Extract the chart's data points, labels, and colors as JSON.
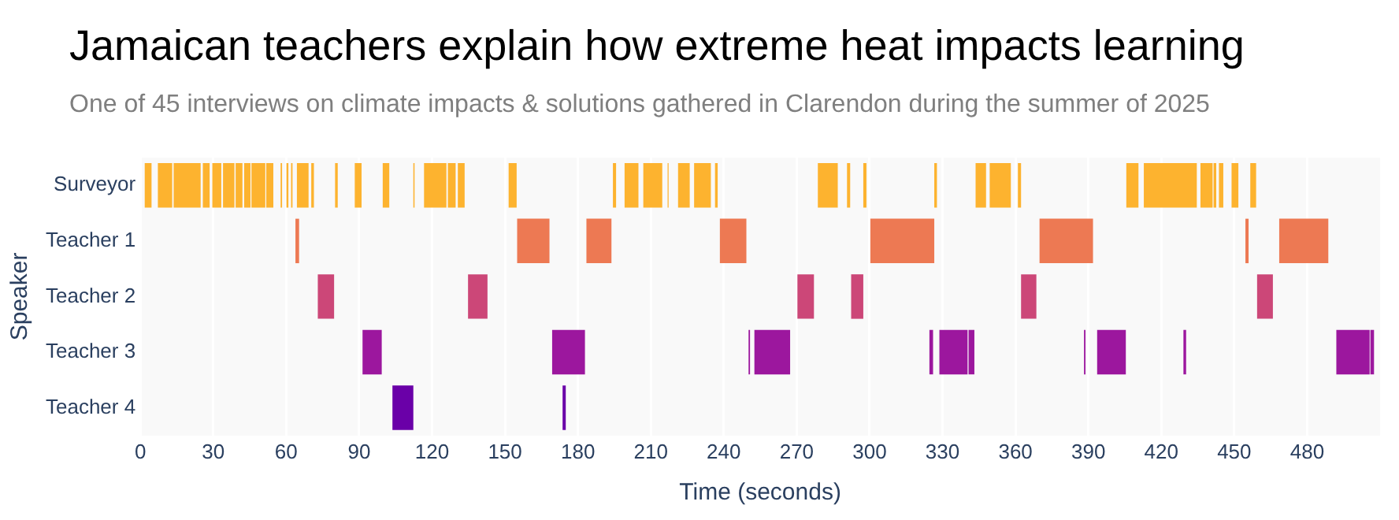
{
  "chart_data": {
    "type": "bar",
    "orientation": "horizontal",
    "title": "Jamaican teachers explain how extreme heat impacts learning",
    "subtitle": "One of 45 interviews on climate impacts & solutions gathered in Clarendon during the summer of 2025",
    "xlabel": "Time (seconds)",
    "ylabel": "Speaker",
    "categories": [
      "Surveyor",
      "Teacher 1",
      "Teacher 2",
      "Teacher 3",
      "Teacher 4"
    ],
    "xlim": [
      0,
      510
    ],
    "xticks": [
      0,
      30,
      60,
      90,
      120,
      150,
      180,
      210,
      240,
      270,
      300,
      330,
      360,
      390,
      420,
      450,
      480
    ],
    "grid": "x",
    "legend": false,
    "series": [
      {
        "color": "#fdb32f",
        "base": [
          1.8,
          null,
          null,
          null,
          null
        ],
        "values": [
          2.8,
          null,
          null,
          null,
          null
        ]
      },
      {
        "color": "#fdb32f",
        "base": [
          7.2,
          null,
          null,
          null,
          null
        ],
        "values": [
          5.9,
          null,
          null,
          null,
          null
        ]
      },
      {
        "color": "#fdb32f",
        "base": [
          13.7,
          null,
          null,
          null,
          null
        ],
        "values": [
          11.1,
          null,
          null,
          null,
          null
        ]
      },
      {
        "color": "#fdb32f",
        "base": [
          25.7,
          null,
          null,
          null,
          null
        ],
        "values": [
          2.8,
          null,
          null,
          null,
          null
        ]
      },
      {
        "color": "#fdb32f",
        "base": [
          29.6,
          null,
          null,
          null,
          null
        ],
        "values": [
          3.7,
          null,
          null,
          null,
          null
        ]
      },
      {
        "color": "#fdb32f",
        "base": [
          34,
          null,
          null,
          null,
          null
        ],
        "values": [
          4.7,
          null,
          null,
          null,
          null
        ]
      },
      {
        "color": "#fdb32f",
        "base": [
          39.2,
          null,
          null,
          null,
          null
        ],
        "values": [
          2.8,
          null,
          null,
          null,
          null
        ]
      },
      {
        "color": "#fdb32f",
        "base": [
          42.7,
          null,
          null,
          null,
          null
        ],
        "values": [
          2.6,
          null,
          null,
          null,
          null
        ]
      },
      {
        "color": "#fdb32f",
        "base": [
          45.7,
          null,
          null,
          null,
          null
        ],
        "values": [
          5.7,
          null,
          null,
          null,
          null
        ]
      },
      {
        "color": "#fdb32f",
        "base": [
          51.8,
          null,
          null,
          null,
          null
        ],
        "values": [
          2.9,
          null,
          null,
          null,
          null
        ]
      },
      {
        "color": "#fdb32f",
        "base": [
          57.7,
          null,
          null,
          null,
          null
        ],
        "values": [
          0.6,
          null,
          null,
          null,
          null
        ]
      },
      {
        "color": "#fdb32f",
        "base": [
          60.1,
          null,
          null,
          null,
          null
        ],
        "values": [
          0.8,
          null,
          null,
          null,
          null
        ]
      },
      {
        "color": "#fdb32f",
        "base": [
          62,
          null,
          null,
          null,
          null
        ],
        "values": [
          0.6,
          null,
          null,
          null,
          null
        ]
      },
      {
        "color": "#fdb32f",
        "base": [
          64.4,
          null,
          null,
          null,
          null
        ],
        "values": [
          4.8,
          null,
          null,
          null,
          null
        ]
      },
      {
        "color": "#fdb32f",
        "base": [
          70.3,
          null,
          null,
          null,
          null
        ],
        "values": [
          1.1,
          null,
          null,
          null,
          null
        ]
      },
      {
        "color": "#fdb32f",
        "base": [
          80.1,
          null,
          null,
          null,
          null
        ],
        "values": [
          1.1,
          null,
          null,
          null,
          null
        ]
      },
      {
        "color": "#fdb32f",
        "base": [
          88.2,
          null,
          null,
          null,
          null
        ],
        "values": [
          2.8,
          null,
          null,
          null,
          null
        ]
      },
      {
        "color": "#fdb32f",
        "base": [
          99.7,
          null,
          null,
          null,
          null
        ],
        "values": [
          2.7,
          null,
          null,
          null,
          null
        ]
      },
      {
        "color": "#fdb32f",
        "base": [
          112.3,
          null,
          null,
          null,
          null
        ],
        "values": [
          0.5,
          null,
          null,
          null,
          null
        ]
      },
      {
        "color": "#fdb32f",
        "base": [
          116.7,
          null,
          null,
          null,
          null
        ],
        "values": [
          9.2,
          null,
          null,
          null,
          null
        ]
      },
      {
        "color": "#fdb32f",
        "base": [
          126.5,
          null,
          null,
          null,
          null
        ],
        "values": [
          3.2,
          null,
          null,
          null,
          null
        ]
      },
      {
        "color": "#fdb32f",
        "base": [
          130.6,
          null,
          null,
          null,
          null
        ],
        "values": [
          2.8,
          null,
          null,
          null,
          null
        ]
      },
      {
        "color": "#fdb32f",
        "base": [
          151.5,
          null,
          null,
          null,
          null
        ],
        "values": [
          3.3,
          null,
          null,
          null,
          null
        ]
      },
      {
        "color": "#fdb32f",
        "base": [
          194.4,
          null,
          null,
          null,
          null
        ],
        "values": [
          1.3,
          null,
          null,
          null,
          null
        ]
      },
      {
        "color": "#fdb32f",
        "base": [
          199.2,
          null,
          null,
          null,
          null
        ],
        "values": [
          5.7,
          null,
          null,
          null,
          null
        ]
      },
      {
        "color": "#fdb32f",
        "base": [
          206.9,
          null,
          null,
          null,
          null
        ],
        "values": [
          7.8,
          null,
          null,
          null,
          null
        ]
      },
      {
        "color": "#fdb32f",
        "base": [
          216.9,
          null,
          null,
          null,
          null
        ],
        "values": [
          0.4,
          null,
          null,
          null,
          null
        ]
      },
      {
        "color": "#fdb32f",
        "base": [
          221.2,
          null,
          null,
          null,
          null
        ],
        "values": [
          4.8,
          null,
          null,
          null,
          null
        ]
      },
      {
        "color": "#fdb32f",
        "base": [
          227.8,
          null,
          null,
          null,
          null
        ],
        "values": [
          6.9,
          null,
          null,
          null,
          null
        ]
      },
      {
        "color": "#fdb32f",
        "base": [
          236.4,
          null,
          null,
          null,
          null
        ],
        "values": [
          1.1,
          null,
          null,
          null,
          null
        ]
      },
      {
        "color": "#fdb32f",
        "base": [
          278.7,
          null,
          null,
          null,
          null
        ],
        "values": [
          8.2,
          null,
          null,
          null,
          null
        ]
      },
      {
        "color": "#fdb32f",
        "base": [
          290.7,
          null,
          null,
          null,
          null
        ],
        "values": [
          1.3,
          null,
          null,
          null,
          null
        ]
      },
      {
        "color": "#fdb32f",
        "base": [
          297.4,
          null,
          null,
          null,
          null
        ],
        "values": [
          1.3,
          null,
          null,
          null,
          null
        ]
      },
      {
        "color": "#fdb32f",
        "base": [
          326.6,
          null,
          null,
          null,
          null
        ],
        "values": [
          1.1,
          null,
          null,
          null,
          null
        ]
      },
      {
        "color": "#fdb32f",
        "base": [
          343.6,
          null,
          null,
          null,
          null
        ],
        "values": [
          4.3,
          null,
          null,
          null,
          null
        ]
      },
      {
        "color": "#fdb32f",
        "base": [
          349.4,
          null,
          null,
          null,
          null
        ],
        "values": [
          8.7,
          null,
          null,
          null,
          null
        ]
      },
      {
        "color": "#fdb32f",
        "base": [
          361,
          null,
          null,
          null,
          null
        ],
        "values": [
          1.3,
          null,
          null,
          null,
          null
        ]
      },
      {
        "color": "#fdb32f",
        "base": [
          405.6,
          null,
          null,
          null,
          null
        ],
        "values": [
          5,
          null,
          null,
          null,
          null
        ]
      },
      {
        "color": "#fdb32f",
        "base": [
          412.8,
          null,
          null,
          null,
          null
        ],
        "values": [
          21.8,
          null,
          null,
          null,
          null
        ]
      },
      {
        "color": "#fdb32f",
        "base": [
          436.1,
          null,
          null,
          null,
          null
        ],
        "values": [
          5,
          null,
          null,
          null,
          null
        ]
      },
      {
        "color": "#fdb32f",
        "base": [
          441.5,
          null,
          null,
          null,
          null
        ],
        "values": [
          1.1,
          null,
          null,
          null,
          null
        ]
      },
      {
        "color": "#fdb32f",
        "base": [
          443.7,
          null,
          null,
          null,
          null
        ],
        "values": [
          1.8,
          null,
          null,
          null,
          null
        ]
      },
      {
        "color": "#fdb32f",
        "base": [
          448.9,
          null,
          null,
          null,
          null
        ],
        "values": [
          2.8,
          null,
          null,
          null,
          null
        ]
      },
      {
        "color": "#fdb32f",
        "base": [
          456.6,
          null,
          null,
          null,
          null
        ],
        "values": [
          2.4,
          null,
          null,
          null,
          null
        ]
      },
      {
        "color": "#ed7953",
        "base": [
          null,
          63.8,
          null,
          null,
          null
        ],
        "values": [
          null,
          1.5,
          null,
          null,
          null
        ]
      },
      {
        "color": "#ed7953",
        "base": [
          null,
          155,
          null,
          null,
          null
        ],
        "values": [
          null,
          13.3,
          null,
          null,
          null
        ]
      },
      {
        "color": "#ed7953",
        "base": [
          null,
          183.5,
          null,
          null,
          null
        ],
        "values": [
          null,
          10.3,
          null,
          null,
          null
        ]
      },
      {
        "color": "#ed7953",
        "base": [
          null,
          238.4,
          null,
          null,
          null
        ],
        "values": [
          null,
          10.9,
          null,
          null,
          null
        ]
      },
      {
        "color": "#ed7953",
        "base": [
          null,
          300.3,
          null,
          null,
          null
        ],
        "values": [
          null,
          26.3,
          null,
          null,
          null
        ]
      },
      {
        "color": "#ed7953",
        "base": [
          null,
          369.9,
          null,
          null,
          null
        ],
        "values": [
          null,
          22,
          null,
          null,
          null
        ]
      },
      {
        "color": "#ed7953",
        "base": [
          null,
          454.6,
          null,
          null,
          null
        ],
        "values": [
          null,
          1.3,
          null,
          null,
          null
        ]
      },
      {
        "color": "#ed7953",
        "base": [
          null,
          468.5,
          null,
          null,
          null
        ],
        "values": [
          null,
          20.2,
          null,
          null,
          null
        ]
      },
      {
        "color": "#cc4778",
        "base": [
          null,
          null,
          73,
          null,
          null
        ],
        "values": [
          null,
          null,
          6.7,
          null,
          null
        ]
      },
      {
        "color": "#cc4778",
        "base": [
          null,
          null,
          134.8,
          null,
          null
        ],
        "values": [
          null,
          null,
          8,
          null,
          null
        ]
      },
      {
        "color": "#cc4778",
        "base": [
          null,
          null,
          270.3,
          null,
          null
        ],
        "values": [
          null,
          null,
          6.8,
          null,
          null
        ]
      },
      {
        "color": "#cc4778",
        "base": [
          null,
          null,
          292.4,
          null,
          null
        ],
        "values": [
          null,
          null,
          5,
          null,
          null
        ]
      },
      {
        "color": "#cc4778",
        "base": [
          null,
          null,
          362.3,
          null,
          null
        ],
        "values": [
          null,
          null,
          6.3,
          null,
          null
        ]
      },
      {
        "color": "#cc4778",
        "base": [
          null,
          null,
          459.4,
          null,
          null
        ],
        "values": [
          null,
          null,
          6.5,
          null,
          null
        ]
      },
      {
        "color": "#9c179e",
        "base": [
          null,
          null,
          null,
          91.4,
          null
        ],
        "values": [
          null,
          null,
          null,
          7.9,
          null
        ]
      },
      {
        "color": "#9c179e",
        "base": [
          null,
          null,
          null,
          169.4,
          null
        ],
        "values": [
          null,
          null,
          null,
          13.5,
          null
        ]
      },
      {
        "color": "#9c179e",
        "base": [
          null,
          null,
          null,
          250.2,
          null
        ],
        "values": [
          null,
          null,
          null,
          0.6,
          null
        ]
      },
      {
        "color": "#9c179e",
        "base": [
          null,
          null,
          null,
          252.6,
          null
        ],
        "values": [
          null,
          null,
          null,
          14.7,
          null
        ]
      },
      {
        "color": "#9c179e",
        "base": [
          null,
          null,
          null,
          324.6,
          null
        ],
        "values": [
          null,
          null,
          null,
          1.5,
          null
        ]
      },
      {
        "color": "#9c179e",
        "base": [
          null,
          null,
          null,
          328.7,
          null
        ],
        "values": [
          null,
          null,
          null,
          11.6,
          null
        ]
      },
      {
        "color": "#9c179e",
        "base": [
          null,
          null,
          null,
          340.7,
          null
        ],
        "values": [
          null,
          null,
          null,
          2.4,
          null
        ]
      },
      {
        "color": "#9c179e",
        "base": [
          null,
          null,
          null,
          388.2,
          null
        ],
        "values": [
          null,
          null,
          null,
          0.6,
          null
        ]
      },
      {
        "color": "#9c179e",
        "base": [
          null,
          null,
          null,
          393.6,
          null
        ],
        "values": [
          null,
          null,
          null,
          11.8,
          null
        ]
      },
      {
        "color": "#9c179e",
        "base": [
          null,
          null,
          null,
          429.1,
          null
        ],
        "values": [
          null,
          null,
          null,
          1.1,
          null
        ]
      },
      {
        "color": "#9c179e",
        "base": [
          null,
          null,
          null,
          492,
          null
        ],
        "values": [
          null,
          null,
          null,
          13.7,
          null
        ]
      },
      {
        "color": "#9c179e",
        "base": [
          null,
          null,
          null,
          506,
          null
        ],
        "values": [
          null,
          null,
          null,
          1.5,
          null
        ]
      },
      {
        "color": "#6a00a8",
        "base": [
          null,
          null,
          null,
          null,
          103.7
        ],
        "values": [
          null,
          null,
          null,
          null,
          8.6
        ]
      },
      {
        "color": "#6a00a8",
        "base": [
          null,
          null,
          null,
          null,
          173.7
        ],
        "values": [
          null,
          null,
          null,
          null,
          1.3
        ]
      }
    ]
  }
}
